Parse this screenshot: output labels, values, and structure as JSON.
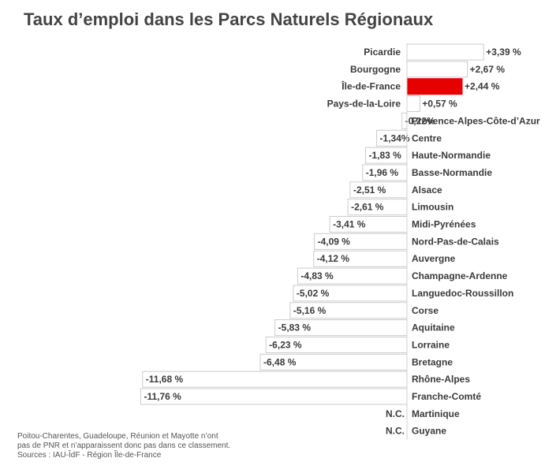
{
  "title": "Taux d’emploi dans les Parcs Naturels Régionaux",
  "notes": [
    "Poitou-Charentes, Guadeloupe, Réunion et Mayotte n’ont",
    "pas de PNR et n’apparaissent donc pas dans ce classement.",
    "Sources : IAU-ÎdF - Région Île-de-France"
  ],
  "colors": {
    "highlight": "#e60000",
    "bar_fill": "#ffffff",
    "bar_stroke": "#cccccc",
    "text": "#3a3a3a"
  },
  "chart_data": {
    "type": "bar",
    "orientation": "horizontal",
    "categories": [
      "Picardie",
      "Bourgogne",
      "Île-de-France",
      "Pays-de-la-Loire",
      "Provence-Alpes-Côte-d’Azur",
      "Centre",
      "Haute-Normandie",
      "Basse-Normandie",
      "Alsace",
      "Limousin",
      "Midi-Pyrénées",
      "Nord-Pas-de-Calais",
      "Auvergne",
      "Champagne-Ardenne",
      "Languedoc-Roussillon",
      "Corse",
      "Aquitaine",
      "Lorraine",
      "Bretagne",
      "Rhône-Alpes",
      "Franche-Comté",
      "Martinique",
      "Guyane"
    ],
    "values": [
      3.39,
      2.67,
      2.44,
      0.57,
      -0.22,
      -1.34,
      -1.83,
      -1.96,
      -2.51,
      -2.61,
      -3.41,
      -4.09,
      -4.12,
      -4.83,
      -5.02,
      -5.16,
      -5.83,
      -6.23,
      -6.48,
      -11.68,
      -11.76,
      null,
      null
    ],
    "labels": [
      "+3,39 %",
      "+2,67 %",
      "+2,44 %",
      "+0,57 %",
      "-0,22%",
      "-1,34%",
      "-1,83 %",
      "-1,96 %",
      "-2,51 %",
      "-2,61 %",
      "-3,41 %",
      "-4,09 %",
      "-4,12 %",
      "-4,83 %",
      "-5,02 %",
      "-5,16 %",
      "-5,83 %",
      "-6,23 %",
      "-6,48 %",
      "-11,68 %",
      "-11,76 %",
      "N.C.",
      "N.C."
    ],
    "highlight": "Île-de-France",
    "unit": "%"
  }
}
